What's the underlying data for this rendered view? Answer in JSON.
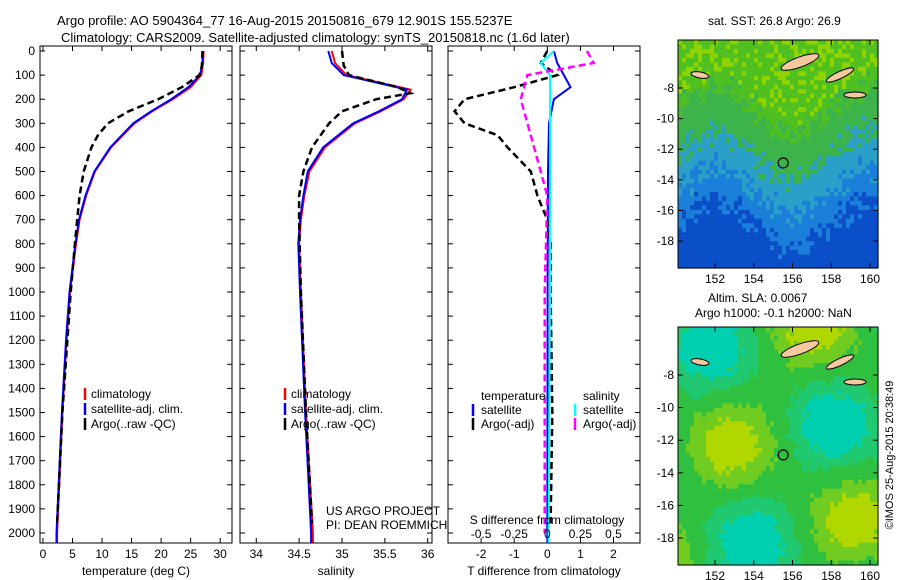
{
  "title": {
    "line1": "Argo profile: AO 5904364_77 16-Aug-2015 20150816_679 12.901S 155.5237E",
    "line2": "Climatology: CARS2009. Satellite-adjusted climatology: synTS_20150818.nc (1.6d later)"
  },
  "colors": {
    "climatology": "#ff0000",
    "satellite": "#0000ff",
    "argo": "#000000",
    "s_satellite": "#00ffff",
    "s_argo": "#ff00ff"
  },
  "chart_data": [
    {
      "type": "line",
      "id": "temperature",
      "xlabel": "temperature (deg C)",
      "ylabel": "",
      "xlim": [
        -0.5,
        32
      ],
      "ylim": [
        2040,
        0
      ],
      "xticks": [
        0,
        5,
        10,
        15,
        20,
        25,
        30
      ],
      "yticks": [
        0,
        100,
        200,
        300,
        400,
        500,
        600,
        700,
        800,
        900,
        1000,
        1100,
        1200,
        1300,
        1400,
        1500,
        1600,
        1700,
        1800,
        1900,
        2000
      ],
      "legend": [
        "climatology",
        "satellite-adj. clim.",
        "Argo(..raw -QC)"
      ],
      "series": [
        {
          "name": "climatology",
          "style": "solid",
          "color": "#ff0000",
          "depth": [
            0,
            50,
            100,
            150,
            200,
            250,
            300,
            400,
            500,
            600,
            700,
            800,
            1000,
            1200,
            1500,
            2000,
            2040
          ],
          "values": [
            27.2,
            27.1,
            26.8,
            25,
            22,
            18.5,
            15.5,
            11.5,
            8.8,
            7.3,
            6.2,
            5.6,
            4.6,
            4.0,
            3.3,
            2.4,
            2.4
          ]
        },
        {
          "name": "satellite-adj. clim.",
          "style": "solid",
          "color": "#0000ff",
          "depth": [
            0,
            50,
            100,
            150,
            200,
            250,
            300,
            400,
            500,
            600,
            700,
            800,
            1000,
            1200,
            1500,
            2000,
            2040
          ],
          "values": [
            27.0,
            27.0,
            26.6,
            24.6,
            21.7,
            18.3,
            15.3,
            11.4,
            8.7,
            7.2,
            6.1,
            5.5,
            4.5,
            3.9,
            3.2,
            2.3,
            2.3
          ]
        },
        {
          "name": "Argo(..raw -QC)",
          "style": "dashed",
          "color": "#000000",
          "depth": [
            0,
            60,
            100,
            150,
            200,
            250,
            300,
            350,
            400,
            500,
            600,
            700,
            800,
            1000,
            1500,
            1960
          ],
          "values": [
            27,
            26.9,
            26.5,
            23.5,
            19.5,
            14.5,
            11,
            9.3,
            8.2,
            6.9,
            6.2,
            5.8,
            5.4,
            4.7,
            3.3,
            2.4
          ]
        }
      ]
    },
    {
      "type": "line",
      "id": "salinity",
      "xlabel": "salinity",
      "ylabel": "",
      "xlim": [
        33.81,
        36.05
      ],
      "ylim": [
        2040,
        0
      ],
      "xticks": [
        34,
        34.5,
        35,
        35.5,
        36
      ],
      "legend": [
        "climatology",
        "satellite-adj. clim.",
        "Argo(..raw -QC)"
      ],
      "annotation": [
        "US ARGO PROJECT",
        "PI: DEAN ROEMMICH"
      ],
      "series": [
        {
          "name": "climatology",
          "style": "solid",
          "color": "#ff0000",
          "depth": [
            0,
            50,
            100,
            160,
            200,
            250,
            300,
            400,
            500,
            600,
            700,
            800,
            1000,
            1500,
            2000,
            2040
          ],
          "values": [
            34.88,
            34.92,
            35.05,
            35.8,
            35.72,
            35.45,
            35.15,
            34.8,
            34.62,
            34.56,
            34.52,
            34.5,
            34.52,
            34.58,
            34.66,
            34.66
          ]
        },
        {
          "name": "satellite-adj. clim.",
          "style": "solid",
          "color": "#0000ff",
          "depth": [
            0,
            50,
            100,
            160,
            200,
            250,
            300,
            400,
            500,
            600,
            700,
            800,
            1000,
            1500,
            2000,
            2040
          ],
          "values": [
            34.84,
            34.88,
            35.02,
            35.76,
            35.7,
            35.43,
            35.13,
            34.78,
            34.6,
            34.55,
            34.51,
            34.49,
            34.51,
            34.57,
            34.64,
            34.64
          ]
        },
        {
          "name": "Argo(..raw -QC)",
          "style": "dashed",
          "color": "#000000",
          "depth": [
            0,
            60,
            100,
            150,
            175,
            200,
            250,
            300,
            400,
            500,
            600,
            700,
            1000,
            1500,
            1960
          ],
          "values": [
            35.0,
            35.02,
            35.08,
            35.65,
            35.8,
            35.4,
            35.0,
            34.85,
            34.65,
            34.55,
            34.5,
            34.5,
            34.52,
            34.58,
            34.65
          ]
        }
      ]
    },
    {
      "type": "line",
      "id": "difference",
      "xlabel": "T difference from climatology",
      "x2label": "S difference from climatology",
      "xlim": [
        -3,
        2.8
      ],
      "ylim": [
        2040,
        0
      ],
      "xticks": [
        -2,
        -1,
        0,
        1,
        2
      ],
      "x2ticks": [
        -0.5,
        -0.25,
        0,
        0.25,
        0.5
      ],
      "x2tick_labels": [
        "-0.5",
        "-0.25",
        "0",
        "0.25",
        "0.5"
      ],
      "legend": {
        "temperature_title": "temperature",
        "salinity_title": "salinity",
        "items": [
          "satellite",
          "Argo(-adj)",
          "satellite",
          "Argo(-adj)"
        ]
      },
      "series": [
        {
          "name": "T satellite",
          "style": "solid",
          "color": "#0000ff",
          "units": "T",
          "depth": [
            0,
            50,
            100,
            150,
            200,
            300,
            500,
            1000,
            2040
          ],
          "values": [
            0.2,
            0.3,
            0.5,
            0.7,
            0.2,
            0.05,
            0.02,
            0.01,
            0
          ]
        },
        {
          "name": "T Argo(-adj)",
          "style": "dashed",
          "color": "#000000",
          "units": "T",
          "depth": [
            0,
            50,
            100,
            150,
            200,
            250,
            300,
            350,
            400,
            500,
            600,
            700,
            800,
            1000,
            1500,
            1960
          ],
          "values": [
            0,
            -0.2,
            0.3,
            -1,
            -2.5,
            -2.8,
            -2.5,
            -1.5,
            -1.2,
            -0.5,
            -0.3,
            0,
            0.1,
            0.1,
            0.15,
            0.1
          ]
        },
        {
          "name": "S satellite",
          "style": "solid",
          "color": "#00ffff",
          "units": "S",
          "depth": [
            0,
            50,
            100,
            200,
            500,
            1000,
            2040
          ],
          "values": [
            0.05,
            -0.05,
            0.02,
            0.02,
            0.02,
            0.02,
            0.01
          ]
        },
        {
          "name": "S Argo(-adj)",
          "style": "dashed",
          "color": "#ff00ff",
          "units": "S",
          "depth": [
            0,
            50,
            100,
            200,
            300,
            400,
            500,
            600,
            1000,
            2000
          ],
          "values": [
            0.3,
            0.35,
            -0.15,
            -0.2,
            -0.15,
            -0.1,
            -0.05,
            0,
            -0.02,
            -0.02
          ]
        }
      ]
    }
  ],
  "maps": {
    "top_title": "sat. SST: 26.8 Argo: 26.9",
    "bottom_title1": "Altim. SLA: 0.0067",
    "bottom_title2": "Argo h1000: -0.1 h2000: NaN",
    "lon_ticks": [
      "152",
      "154",
      "156",
      "158",
      "160"
    ],
    "lat_ticks": [
      "-8",
      "-10",
      "-12",
      "-14",
      "-16",
      "-18"
    ],
    "argo_location": {
      "lon": 155.52,
      "lat": -12.9
    }
  },
  "credit": "©IMOS 25-Aug-2015 20:38:49"
}
